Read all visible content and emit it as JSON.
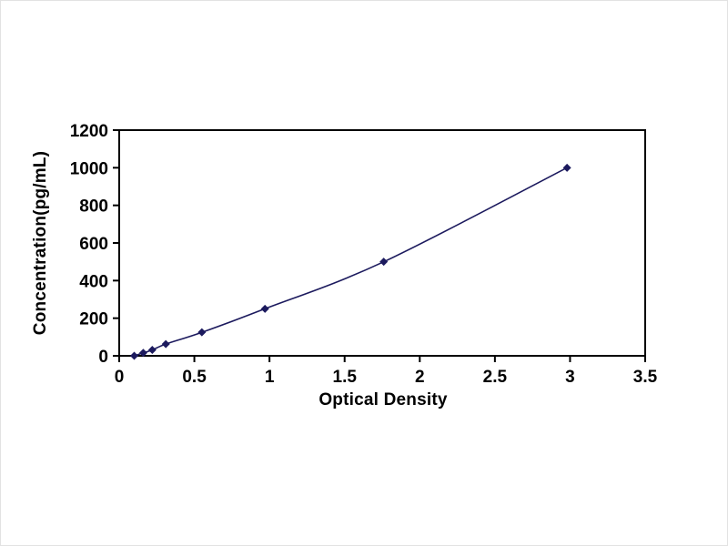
{
  "chart_data": {
    "type": "line",
    "title": "",
    "xlabel": "Optical Density",
    "ylabel": "Concentration(pg/mL)",
    "x": [
      0.1,
      0.16,
      0.22,
      0.31,
      0.55,
      0.97,
      1.76,
      2.98
    ],
    "y": [
      0,
      15.6,
      31.2,
      62.5,
      125,
      250,
      500,
      1000
    ],
    "xlim": [
      0,
      3.5
    ],
    "ylim": [
      0,
      1200
    ],
    "xticks": [
      0,
      0.5,
      1,
      1.5,
      2,
      2.5,
      3,
      3.5
    ],
    "xtick_labels": [
      "0",
      "0.5",
      "1",
      "1.5",
      "2",
      "2.5",
      "3",
      "3.5"
    ],
    "yticks": [
      0,
      200,
      400,
      600,
      800,
      1000,
      1200
    ],
    "ytick_labels": [
      "0",
      "200",
      "400",
      "600",
      "800",
      "1000",
      "1200"
    ],
    "grid": false,
    "legend": null,
    "marker": "diamond",
    "line_color": "#1c1a5e",
    "marker_color": "#1c1a5e",
    "axis_color": "#000000",
    "background_color": "#ffffff",
    "tick_font_size": 19,
    "label_font_size": 19
  }
}
